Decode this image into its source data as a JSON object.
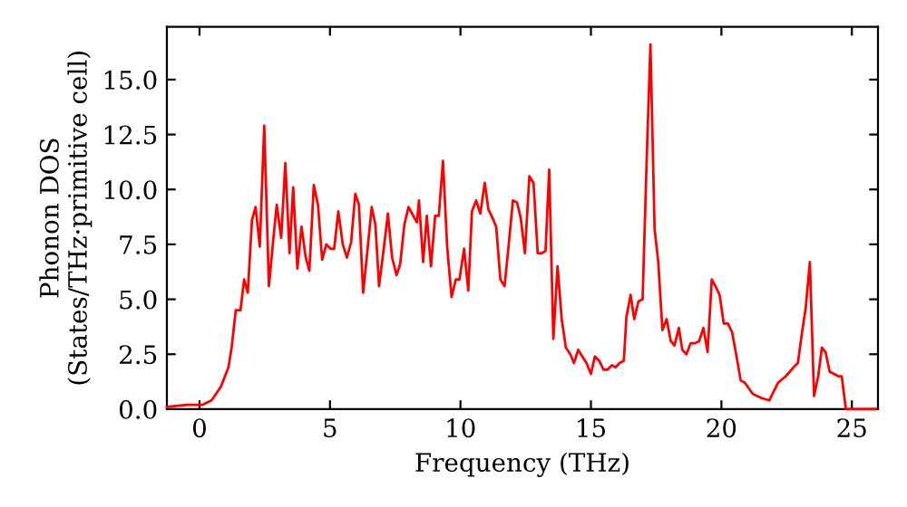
{
  "chart_data": {
    "type": "line",
    "xlabel": "Frequency (THz)",
    "ylabel": "Phonon DOS\n(States/THz·primitive cell)",
    "xlim": [
      -1.25,
      26.0
    ],
    "ylim": [
      0,
      17.4
    ],
    "xticks": [
      0,
      5,
      10,
      15,
      20,
      25
    ],
    "yticks": [
      {
        "value": 0,
        "label": "0.0"
      },
      {
        "value": 2.5,
        "label": "2.5"
      },
      {
        "value": 5,
        "label": "5.0"
      },
      {
        "value": 7.5,
        "label": "7.5"
      },
      {
        "value": 10,
        "label": "10.0"
      },
      {
        "value": 12.5,
        "label": "12.5"
      },
      {
        "value": 15,
        "label": "15.0"
      }
    ],
    "grid": false,
    "marker": "none",
    "line_style": "solid",
    "series": [
      {
        "color": "#ff0000",
        "x": [
          -1.25,
          -0.46,
          0.12,
          0.46,
          0.81,
          1.11,
          1.23,
          1.39,
          1.57,
          1.71,
          1.85,
          2.01,
          2.15,
          2.31,
          2.48,
          2.66,
          2.85,
          2.96,
          3.13,
          3.29,
          3.45,
          3.59,
          3.75,
          3.91,
          4.07,
          4.21,
          4.38,
          4.54,
          4.7,
          4.86,
          5.02,
          5.16,
          5.32,
          5.49,
          5.65,
          5.81,
          5.97,
          6.11,
          6.27,
          6.44,
          6.6,
          6.74,
          6.88,
          7.06,
          7.22,
          7.38,
          7.55,
          7.69,
          7.85,
          8.01,
          8.33,
          8.41,
          8.57,
          8.71,
          8.87,
          9.03,
          9.17,
          9.33,
          9.49,
          9.66,
          9.82,
          9.96,
          10.14,
          10.3,
          10.44,
          10.6,
          10.76,
          10.93,
          11.07,
          11.23,
          11.37,
          11.53,
          11.69,
          11.85,
          12.01,
          12.17,
          12.31,
          12.47,
          12.64,
          12.8,
          12.96,
          13.12,
          13.26,
          13.4,
          13.56,
          13.72,
          13.88,
          14.04,
          14.21,
          14.35,
          14.51,
          14.67,
          14.83,
          15.0,
          15.15,
          15.32,
          15.48,
          15.64,
          15.8,
          15.94,
          16.1,
          16.26,
          16.36,
          16.52,
          16.66,
          16.82,
          16.98,
          17.14,
          17.28,
          17.44,
          17.58,
          17.74,
          17.9,
          18.06,
          18.2,
          18.37,
          18.5,
          18.66,
          18.82,
          18.99,
          19.15,
          19.31,
          19.47,
          19.63,
          19.77,
          19.93,
          20.09,
          20.25,
          20.41,
          20.58,
          20.74,
          20.9,
          21.2,
          21.54,
          21.84,
          22.0,
          22.17,
          22.47,
          22.76,
          22.93,
          23.09,
          23.23,
          23.39,
          23.55,
          23.71,
          23.85,
          23.99,
          24.15,
          24.32,
          24.48,
          24.61,
          24.77,
          25.92
        ],
        "values": [
          0.1,
          0.2,
          0.2,
          0.4,
          1.0,
          1.9,
          2.8,
          4.5,
          4.5,
          5.9,
          5.3,
          8.6,
          9.2,
          7.4,
          12.9,
          5.6,
          8.0,
          9.3,
          7.8,
          11.2,
          7.1,
          10.1,
          6.4,
          8.3,
          6.9,
          6.3,
          10.2,
          9.3,
          6.8,
          7.5,
          7.3,
          7.3,
          9.0,
          7.5,
          6.9,
          7.6,
          9.8,
          9.3,
          5.3,
          7.3,
          9.2,
          8.4,
          5.6,
          7.3,
          8.9,
          6.9,
          6.1,
          6.6,
          8.4,
          9.2,
          8.5,
          9.5,
          6.7,
          8.8,
          6.5,
          8.8,
          8.8,
          11.3,
          7.4,
          5.1,
          5.9,
          5.9,
          7.3,
          5.4,
          9.0,
          9.5,
          8.9,
          10.3,
          9.1,
          8.7,
          8.3,
          5.9,
          5.6,
          7.5,
          9.5,
          9.4,
          8.7,
          7.1,
          10.6,
          10.3,
          7.1,
          7.1,
          7.2,
          10.9,
          3.2,
          6.5,
          4.1,
          2.8,
          2.5,
          2.1,
          2.7,
          2.4,
          2.1,
          1.6,
          2.4,
          2.2,
          1.8,
          1.8,
          2.0,
          1.9,
          2.1,
          2.2,
          4.2,
          5.2,
          4.1,
          4.9,
          5.0,
          11.5,
          16.6,
          8.2,
          6.7,
          3.6,
          4.1,
          3.1,
          2.9,
          3.7,
          2.7,
          2.5,
          3.0,
          3.0,
          3.1,
          3.7,
          2.6,
          5.9,
          5.6,
          5.2,
          3.9,
          3.9,
          3.5,
          2.4,
          1.3,
          1.2,
          0.7,
          0.5,
          0.4,
          0.8,
          1.2,
          1.5,
          1.9,
          2.1,
          3.5,
          4.6,
          6.7,
          0.6,
          1.5,
          2.8,
          2.6,
          1.7,
          1.6,
          1.5,
          1.5,
          0,
          0
        ]
      }
    ]
  }
}
